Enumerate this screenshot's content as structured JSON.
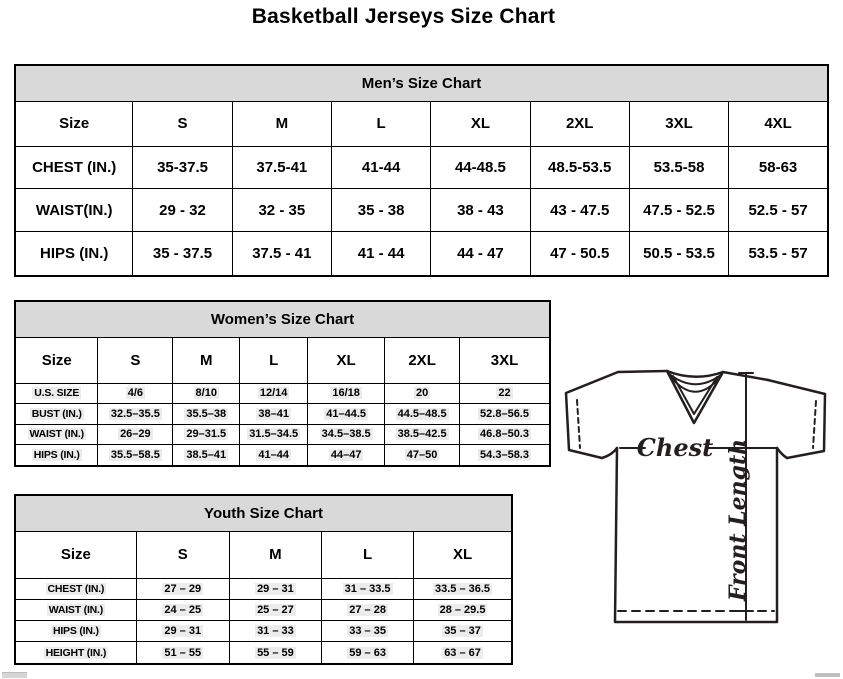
{
  "page_title": "Basketball Jerseys Size Chart",
  "tables": [
    {
      "id": "mens",
      "title": "Men’s Size Chart",
      "size_label": "Size",
      "sizes": [
        "S",
        "M",
        "L",
        "XL",
        "2XL",
        "3XL",
        "4XL"
      ],
      "rows": [
        {
          "label": "CHEST (IN.)",
          "values": [
            "35-37.5",
            "37.5-41",
            "41-44",
            "44-48.5",
            "48.5-53.5",
            "53.5-58",
            "58-63"
          ]
        },
        {
          "label": "WAIST(IN.)",
          "values": [
            "29 - 32",
            "32 - 35",
            "35 - 38",
            "38 - 43",
            "43 - 47.5",
            "47.5 - 52.5",
            "52.5 - 57"
          ]
        },
        {
          "label": "HIPS (IN.)",
          "values": [
            "35 - 37.5",
            "37.5 - 41",
            "41 - 44",
            "44 - 47",
            "47 - 50.5",
            "50.5 - 53.5",
            "53.5 - 57"
          ]
        }
      ]
    },
    {
      "id": "womens",
      "title": "Women’s Size Chart",
      "size_label": "Size",
      "sizes": [
        "S",
        "M",
        "L",
        "XL",
        "2XL",
        "3XL"
      ],
      "rows": [
        {
          "label": "U.S. SIZE",
          "values": [
            "4/6",
            "8/10",
            "12/14",
            "16/18",
            "20",
            "22"
          ]
        },
        {
          "label": "BUST (IN.)",
          "values": [
            "32.5–35.5",
            "35.5–38",
            "38–41",
            "41–44.5",
            "44.5–48.5",
            "52.8–56.5"
          ]
        },
        {
          "label": "WAIST (IN.)",
          "values": [
            "26–29",
            "29–31.5",
            "31.5–34.5",
            "34.5–38.5",
            "38.5–42.5",
            "46.8–50.3"
          ]
        },
        {
          "label": "HIPS (IN.)",
          "values": [
            "35.5–58.5",
            "38.5–41",
            "41–44",
            "44–47",
            "47–50",
            "54.3–58.3"
          ]
        }
      ]
    },
    {
      "id": "youth",
      "title": "Youth Size Chart",
      "size_label": "Size",
      "sizes": [
        "S",
        "M",
        "L",
        "XL"
      ],
      "rows": [
        {
          "label": "CHEST (IN.)",
          "values": [
            "27 – 29",
            "29 – 31",
            "31 – 33.5",
            "33.5 – 36.5"
          ]
        },
        {
          "label": "WAIST (IN.)",
          "values": [
            "24 – 25",
            "25 – 27",
            "27 – 28",
            "28 – 29.5"
          ]
        },
        {
          "label": "HIPS (IN.)",
          "values": [
            "29 – 31",
            "31 – 33",
            "33 – 35",
            "35 – 37"
          ]
        },
        {
          "label": "HEIGHT (IN.)",
          "values": [
            "51 – 55",
            "55 – 59",
            "59 – 63",
            "63 – 67"
          ]
        }
      ]
    }
  ],
  "diagram": {
    "chest_label": "Chest",
    "front_length_label": "Front Length"
  },
  "colors": {
    "header_band_bg": "#d9d9d9",
    "table_border": "#000000",
    "diagram_line": "#231f1e",
    "value_highlight": "#ececec"
  }
}
